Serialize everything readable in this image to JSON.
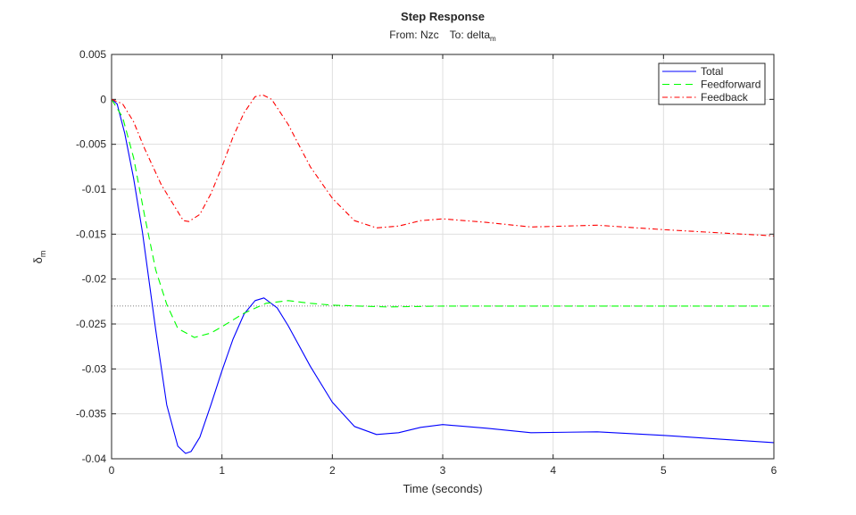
{
  "chart_data": {
    "type": "line",
    "title": "Step Response",
    "subtitle_from": "From:  Nzc",
    "subtitle_to": "To:  delta",
    "subtitle_to_sub": "m",
    "xlabel": "Time (seconds)",
    "ylabel": "δ",
    "ylabel_sub": "m",
    "xlim": [
      0,
      6
    ],
    "ylim": [
      -0.04,
      0.005
    ],
    "xticks": [
      "0",
      "1",
      "2",
      "3",
      "4",
      "5",
      "6"
    ],
    "yticks": [
      "0.005",
      "0",
      "-0.005",
      "-0.01",
      "-0.015",
      "-0.02",
      "-0.025",
      "-0.03",
      "-0.035",
      "-0.04"
    ],
    "grid": true,
    "legend_position": "top-right",
    "steady_state": -0.023,
    "series": [
      {
        "name": "Total",
        "color": "#0000ff",
        "dash": "",
        "points": [
          [
            0,
            0
          ],
          [
            0.05,
            -0.0005
          ],
          [
            0.12,
            -0.0038
          ],
          [
            0.2,
            -0.0088
          ],
          [
            0.28,
            -0.0148
          ],
          [
            0.4,
            -0.0257
          ],
          [
            0.5,
            -0.034
          ],
          [
            0.6,
            -0.0386
          ],
          [
            0.67,
            -0.0394
          ],
          [
            0.72,
            -0.0392
          ],
          [
            0.8,
            -0.0376
          ],
          [
            0.9,
            -0.034
          ],
          [
            1.0,
            -0.0302
          ],
          [
            1.1,
            -0.0267
          ],
          [
            1.2,
            -0.0239
          ],
          [
            1.3,
            -0.0224
          ],
          [
            1.38,
            -0.0221
          ],
          [
            1.5,
            -0.0232
          ],
          [
            1.6,
            -0.0252
          ],
          [
            1.8,
            -0.0297
          ],
          [
            2.0,
            -0.0337
          ],
          [
            2.2,
            -0.0364
          ],
          [
            2.4,
            -0.0373
          ],
          [
            2.6,
            -0.0371
          ],
          [
            2.8,
            -0.0365
          ],
          [
            3.0,
            -0.0362
          ],
          [
            3.4,
            -0.0366
          ],
          [
            3.8,
            -0.0371
          ],
          [
            4.4,
            -0.037
          ],
          [
            5.0,
            -0.0374
          ],
          [
            5.5,
            -0.0378
          ],
          [
            6.0,
            -0.0382
          ]
        ]
      },
      {
        "name": "Feedforward",
        "color": "#00ff00",
        "dash": "8,5",
        "points": [
          [
            0,
            0
          ],
          [
            0.1,
            -0.002
          ],
          [
            0.2,
            -0.0065
          ],
          [
            0.3,
            -0.013
          ],
          [
            0.4,
            -0.019
          ],
          [
            0.5,
            -0.0228
          ],
          [
            0.6,
            -0.0255
          ],
          [
            0.75,
            -0.0265
          ],
          [
            0.9,
            -0.026
          ],
          [
            1.0,
            -0.0253
          ],
          [
            1.2,
            -0.0238
          ],
          [
            1.4,
            -0.0227
          ],
          [
            1.6,
            -0.0224
          ],
          [
            1.8,
            -0.0227
          ],
          [
            2.0,
            -0.0229
          ],
          [
            2.5,
            -0.0231
          ],
          [
            3.0,
            -0.023
          ],
          [
            6.0,
            -0.023
          ]
        ]
      },
      {
        "name": "Feedback",
        "color": "#ff0000",
        "dash": "6,3,1.5,3",
        "points": [
          [
            0,
            0
          ],
          [
            0.1,
            -0.0005
          ],
          [
            0.2,
            -0.0025
          ],
          [
            0.3,
            -0.0055
          ],
          [
            0.45,
            -0.0095
          ],
          [
            0.6,
            -0.0125
          ],
          [
            0.65,
            -0.0135
          ],
          [
            0.7,
            -0.0136
          ],
          [
            0.8,
            -0.0128
          ],
          [
            0.9,
            -0.0105
          ],
          [
            1.0,
            -0.0075
          ],
          [
            1.1,
            -0.0042
          ],
          [
            1.2,
            -0.0015
          ],
          [
            1.3,
            0.0003
          ],
          [
            1.37,
            0.0005
          ],
          [
            1.45,
            0.0
          ],
          [
            1.6,
            -0.0028
          ],
          [
            1.8,
            -0.0075
          ],
          [
            2.0,
            -0.011
          ],
          [
            2.2,
            -0.0135
          ],
          [
            2.4,
            -0.0143
          ],
          [
            2.6,
            -0.0141
          ],
          [
            2.8,
            -0.0135
          ],
          [
            3.0,
            -0.0133
          ],
          [
            3.4,
            -0.0137
          ],
          [
            3.8,
            -0.0142
          ],
          [
            4.4,
            -0.014
          ],
          [
            5.0,
            -0.0145
          ],
          [
            6.0,
            -0.0152
          ]
        ]
      }
    ]
  }
}
